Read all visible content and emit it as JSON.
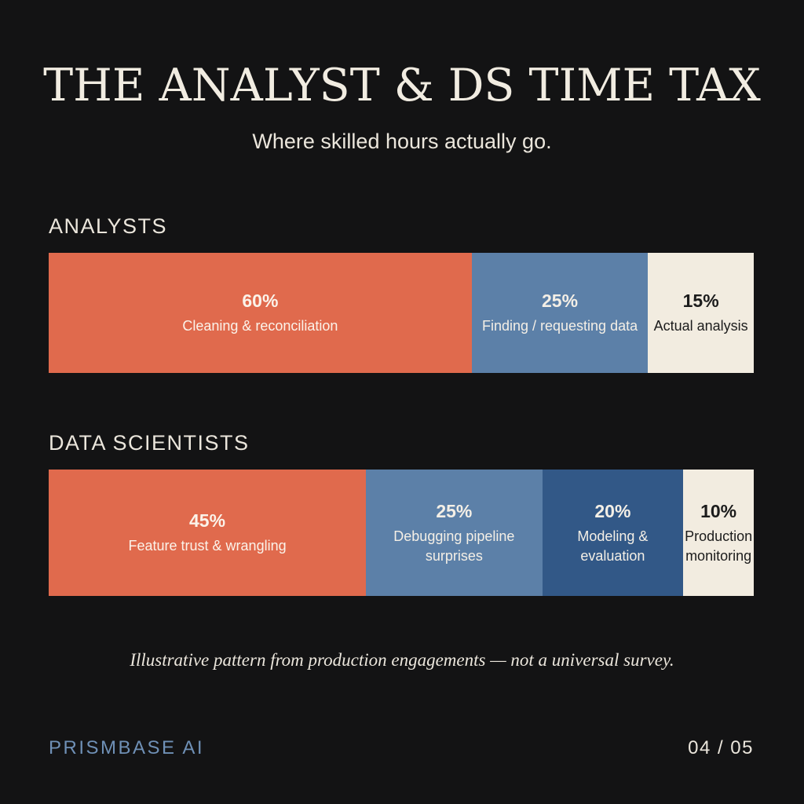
{
  "title": "THE ANALYST & DS TIME TAX",
  "subtitle": "Where skilled hours actually go.",
  "chart_data": {
    "type": "bar",
    "orientation": "horizontal-stacked-100",
    "groups": [
      {
        "name": "ANALYSTS",
        "segments": [
          {
            "value": 60,
            "value_label": "60%",
            "label": "Cleaning & reconciliation",
            "color": "#e06a4d",
            "text_color": "#fbf3ea"
          },
          {
            "value": 25,
            "value_label": "25%",
            "label": "Finding / requesting data",
            "color": "#5c80a8",
            "text_color": "#f4efe6"
          },
          {
            "value": 15,
            "value_label": "15%",
            "label": "Actual analysis",
            "color": "#f2ece0",
            "text_color": "#1c1c1c"
          }
        ]
      },
      {
        "name": "DATA SCIENTISTS",
        "segments": [
          {
            "value": 45,
            "value_label": "45%",
            "label": "Feature trust & wrangling",
            "color": "#e06a4d",
            "text_color": "#fbf3ea"
          },
          {
            "value": 25,
            "value_label": "25%",
            "label": "Debugging pipeline surprises",
            "color": "#5c80a8",
            "text_color": "#f4efe6"
          },
          {
            "value": 20,
            "value_label": "20%",
            "label": "Modeling & evaluation",
            "color": "#325887",
            "text_color": "#f4efe6"
          },
          {
            "value": 10,
            "value_label": "10%",
            "label": "Production monitoring",
            "color": "#f2ece0",
            "text_color": "#1c1c1c"
          }
        ]
      }
    ]
  },
  "footnote": "Illustrative pattern from production engagements — not a universal survey.",
  "brand": "PRISMBASE AI",
  "page_indicator": "04 / 05",
  "colors": {
    "background": "#131314",
    "brand": "#6f90b6"
  }
}
